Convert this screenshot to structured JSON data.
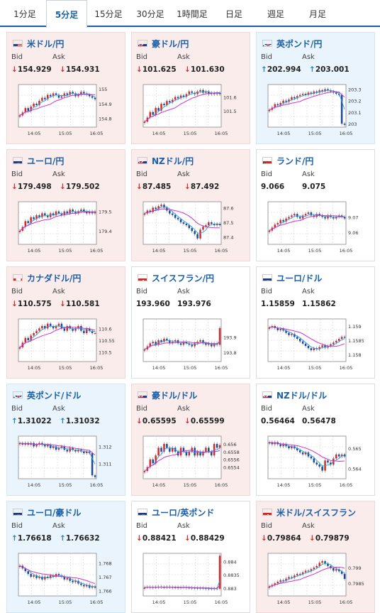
{
  "tabs": [
    {
      "label": "1分足",
      "active": false
    },
    {
      "label": "5分足",
      "active": true
    },
    {
      "label": "15分足",
      "active": false
    },
    {
      "label": "30分足",
      "active": false
    },
    {
      "label": "1時間足",
      "active": false
    },
    {
      "label": "日足",
      "active": false
    },
    {
      "label": "週足",
      "active": false
    },
    {
      "label": "月足",
      "active": false
    }
  ],
  "bid_label": "Bid",
  "ask_label": "Ask",
  "colors": {
    "up": "#d42a2a",
    "down": "#1a4aa0",
    "down_arrow": "#d42a2a",
    "up_arrow": "#2a7ec0",
    "ma": "#cc33cc",
    "ma2": "#2aa0d8"
  },
  "cards": [
    {
      "name": "米ドル/円",
      "flag": "us-flag",
      "bg": "pink",
      "dir": "down",
      "bid": "154.929",
      "ask": "154.931",
      "x_ticks": [
        "14:05",
        "15:05",
        "16:05"
      ],
      "y_ticks": [
        "155",
        "154.9",
        "154.8"
      ],
      "ylim": [
        154.74,
        155.03
      ],
      "closes": [
        154.82,
        154.84,
        154.87,
        154.85,
        154.88,
        154.9,
        154.89,
        154.92,
        154.94,
        154.93,
        154.96,
        154.95,
        154.97,
        154.96,
        154.94,
        154.95,
        154.97,
        154.96,
        154.98,
        154.97,
        154.95,
        154.96,
        154.98,
        154.97,
        154.96,
        154.95,
        154.94,
        154.93
      ]
    },
    {
      "name": "豪ドル/円",
      "flag": "au-flag",
      "bg": "pink",
      "dir": "down",
      "bid": "101.625",
      "ask": "101.630",
      "x_ticks": [
        "14:05",
        "15:05",
        "16:05"
      ],
      "y_ticks": [
        "101.6",
        "101.5"
      ],
      "ylim": [
        101.38,
        101.69
      ],
      "closes": [
        101.42,
        101.45,
        101.49,
        101.47,
        101.52,
        101.5,
        101.55,
        101.54,
        101.57,
        101.56,
        101.58,
        101.6,
        101.59,
        101.61,
        101.6,
        101.62,
        101.64,
        101.63,
        101.62,
        101.64,
        101.65,
        101.63,
        101.64,
        101.62,
        101.63,
        101.62,
        101.63,
        101.62
      ]
    },
    {
      "name": "英ポンド/円",
      "flag": "uk-flag",
      "bg": "blue",
      "dir": "up",
      "bid": "202.994",
      "ask": "203.001",
      "x_ticks": [
        "14:05",
        "15:05",
        "16:05"
      ],
      "y_ticks": [
        "203.3",
        "203.2",
        "203.1",
        "203"
      ],
      "ylim": [
        202.97,
        203.34
      ],
      "closes": [
        203.12,
        203.14,
        203.17,
        203.16,
        203.18,
        203.2,
        203.19,
        203.21,
        203.23,
        203.22,
        203.24,
        203.25,
        203.26,
        203.25,
        203.27,
        203.26,
        203.28,
        203.27,
        203.29,
        203.28,
        203.3,
        203.29,
        203.28,
        203.27,
        203.26,
        203.25,
        203.0,
        202.99
      ]
    },
    {
      "name": "ユーロ/円",
      "flag": "eu-flag",
      "bg": "pink",
      "dir": "down",
      "bid": "179.498",
      "ask": "179.502",
      "x_ticks": [
        "14:05",
        "15:05",
        "16:05"
      ],
      "y_ticks": [
        "179.5",
        "179.4"
      ],
      "ylim": [
        179.33,
        179.55
      ],
      "closes": [
        179.4,
        179.42,
        179.45,
        179.44,
        179.47,
        179.46,
        179.48,
        179.47,
        179.49,
        179.48,
        179.47,
        179.49,
        179.48,
        179.5,
        179.49,
        179.48,
        179.5,
        179.49,
        179.51,
        179.5,
        179.49,
        179.5,
        179.51,
        179.5,
        179.49,
        179.5,
        179.49,
        179.5
      ]
    },
    {
      "name": "NZドル/円",
      "flag": "nz-flag",
      "bg": "pink",
      "dir": "down",
      "bid": "87.485",
      "ask": "87.492",
      "x_ticks": [
        "14:05",
        "15:05",
        "16:05"
      ],
      "y_ticks": [
        "87.6",
        "87.5",
        "87.4"
      ],
      "ylim": [
        87.35,
        87.64
      ],
      "closes": [
        87.56,
        87.58,
        87.57,
        87.6,
        87.59,
        87.61,
        87.62,
        87.6,
        87.58,
        87.56,
        87.55,
        87.53,
        87.52,
        87.5,
        87.49,
        87.48,
        87.46,
        87.44,
        87.42,
        87.39,
        87.45,
        87.47,
        87.48,
        87.5,
        87.49,
        87.48,
        87.49,
        87.48
      ]
    },
    {
      "name": "ランド/円",
      "flag": "za-flag",
      "bg": "white",
      "dir": "none",
      "bid": "9.066",
      "ask": "9.075",
      "x_ticks": [
        "14:05",
        "15:05",
        "16:05"
      ],
      "y_ticks": [
        "9.07",
        "9.06"
      ],
      "ylim": [
        9.052,
        9.08
      ],
      "closes": [
        9.061,
        9.063,
        9.065,
        9.066,
        9.068,
        9.067,
        9.069,
        9.07,
        9.071,
        9.072,
        9.07,
        9.069,
        9.071,
        9.072,
        9.073,
        9.071,
        9.07,
        9.072,
        9.071,
        9.07,
        9.069,
        9.071,
        9.07,
        9.069,
        9.07,
        9.071,
        9.07,
        9.069
      ]
    },
    {
      "name": "カナダドル/円",
      "flag": "ca-flag",
      "bg": "pink",
      "dir": "down",
      "bid": "110.575",
      "ask": "110.581",
      "x_ticks": [
        "14:05",
        "15:05",
        "16:05"
      ],
      "y_ticks": [
        "110.6",
        "110.55",
        "110.5"
      ],
      "ylim": [
        110.46,
        110.64
      ],
      "closes": [
        110.52,
        110.54,
        110.56,
        110.55,
        110.57,
        110.58,
        110.59,
        110.6,
        110.61,
        110.6,
        110.62,
        110.61,
        110.6,
        110.61,
        110.62,
        110.6,
        110.59,
        110.61,
        110.6,
        110.59,
        110.6,
        110.61,
        110.59,
        110.58,
        110.6,
        110.59,
        110.58,
        110.58
      ]
    },
    {
      "name": "スイスフラン/円",
      "flag": "ch-flag",
      "bg": "white",
      "dir": "none",
      "bid": "193.960",
      "ask": "193.976",
      "x_ticks": [
        "14:05",
        "15:05",
        "16:05"
      ],
      "y_ticks": [
        "193.9",
        "193.8"
      ],
      "ylim": [
        193.74,
        194.02
      ],
      "closes": [
        193.82,
        193.84,
        193.86,
        193.87,
        193.85,
        193.88,
        193.87,
        193.89,
        193.88,
        193.86,
        193.87,
        193.88,
        193.86,
        193.85,
        193.87,
        193.86,
        193.85,
        193.84,
        193.86,
        193.87,
        193.88,
        193.86,
        193.85,
        193.86,
        193.84,
        193.86,
        193.85,
        193.96
      ]
    },
    {
      "name": "ユーロ/ドル",
      "flag": "eu-flag",
      "bg": "white",
      "dir": "none",
      "bid": "1.15859",
      "ask": "1.15862",
      "x_ticks": [
        "14:05",
        "15:05",
        "16:05"
      ],
      "y_ticks": [
        "1.159",
        "1.1585",
        "1.158"
      ],
      "ylim": [
        1.15775,
        1.15925
      ],
      "closes": [
        1.15895,
        1.159,
        1.15893,
        1.15885,
        1.1589,
        1.15884,
        1.15876,
        1.15868,
        1.15872,
        1.15862,
        1.15855,
        1.15846,
        1.15838,
        1.1583,
        1.15822,
        1.15815,
        1.15822,
        1.15818,
        1.15826,
        1.15832,
        1.15824,
        1.1583,
        1.15836,
        1.15842,
        1.15848,
        1.15855,
        1.15862,
        1.15859
      ]
    },
    {
      "name": "英ポンド/ドル",
      "flag": "uk-flag",
      "bg": "blue",
      "dir": "up",
      "bid": "1.31022",
      "ask": "1.31032",
      "x_ticks": [
        "14:05",
        "15:05",
        "16:05"
      ],
      "y_ticks": [
        "1.312",
        "1.311"
      ],
      "ylim": [
        1.3101,
        1.3126
      ],
      "closes": [
        1.3122,
        1.3121,
        1.3122,
        1.3121,
        1.3122,
        1.312,
        1.3121,
        1.3122,
        1.3121,
        1.312,
        1.3121,
        1.3119,
        1.312,
        1.3118,
        1.3119,
        1.312,
        1.3118,
        1.3117,
        1.3119,
        1.3118,
        1.3117,
        1.3118,
        1.3117,
        1.3116,
        1.3117,
        1.3116,
        1.3103,
        1.3102
      ]
    },
    {
      "name": "豪ドル/ドル",
      "flag": "au-flag",
      "bg": "pink",
      "dir": "down",
      "bid": "0.65595",
      "ask": "0.65599",
      "x_ticks": [
        "14:05",
        "15:05",
        "16:05"
      ],
      "y_ticks": [
        "0.656",
        "0.6558",
        "0.6556",
        "0.6554"
      ],
      "ylim": [
        0.6551,
        0.6562
      ],
      "closes": [
        0.6553,
        0.6554,
        0.6556,
        0.6555,
        0.6557,
        0.6559,
        0.6558,
        0.656,
        0.6559,
        0.6558,
        0.6559,
        0.6558,
        0.6557,
        0.6559,
        0.6558,
        0.6557,
        0.6558,
        0.6559,
        0.6557,
        0.6558,
        0.6557,
        0.6558,
        0.6559,
        0.6558,
        0.6557,
        0.656,
        0.6559,
        0.65597
      ]
    },
    {
      "name": "NZドル/ドル",
      "flag": "nz-flag",
      "bg": "white",
      "dir": "none",
      "bid": "0.56464",
      "ask": "0.56478",
      "x_ticks": [
        "14:05",
        "15:05",
        "16:05"
      ],
      "y_ticks": [
        "0.565",
        "0.564"
      ],
      "ylim": [
        0.5635,
        0.5656
      ],
      "closes": [
        0.5653,
        0.5652,
        0.5653,
        0.5652,
        0.5651,
        0.5652,
        0.5651,
        0.565,
        0.5651,
        0.565,
        0.5649,
        0.5648,
        0.5647,
        0.5648,
        0.5646,
        0.5645,
        0.5643,
        0.5642,
        0.5641,
        0.5639,
        0.5644,
        0.5643,
        0.5642,
        0.5645,
        0.5647,
        0.5646,
        0.5647,
        0.5646
      ]
    },
    {
      "name": "ユーロ/豪ドル",
      "flag": "eu-flag",
      "bg": "blue",
      "dir": "up",
      "bid": "1.76618",
      "ask": "1.76632",
      "x_ticks": [
        "14:05",
        "15:05",
        "16:05"
      ],
      "y_ticks": [
        "1.768",
        "1.767",
        "1.766"
      ],
      "ylim": [
        1.7656,
        1.7687
      ],
      "closes": [
        1.7678,
        1.7676,
        1.7674,
        1.7672,
        1.767,
        1.7671,
        1.7669,
        1.767,
        1.7668,
        1.767,
        1.7669,
        1.7671,
        1.767,
        1.7672,
        1.7671,
        1.767,
        1.7668,
        1.7669,
        1.7667,
        1.7666,
        1.7667,
        1.7665,
        1.7664,
        1.7663,
        1.7664,
        1.7662,
        1.7663,
        1.7662
      ]
    },
    {
      "name": "ユーロ/英ポンド",
      "flag": "eu-flag",
      "bg": "white",
      "dir": "down",
      "bid": "0.88421",
      "ask": "0.88429",
      "x_ticks": [
        "14:05",
        "15:05",
        "16:05"
      ],
      "y_ticks": [
        "0.884",
        "0.8835",
        "0.883"
      ],
      "ylim": [
        0.8827,
        0.8843
      ],
      "closes": [
        0.88302,
        0.88304,
        0.88301,
        0.88303,
        0.88302,
        0.88305,
        0.88303,
        0.88302,
        0.88304,
        0.88303,
        0.88301,
        0.88302,
        0.883,
        0.88302,
        0.88303,
        0.883,
        0.88301,
        0.88299,
        0.883,
        0.88298,
        0.883,
        0.88299,
        0.88297,
        0.88298,
        0.88296,
        0.88298,
        0.88297,
        0.88421
      ]
    },
    {
      "name": "米ドル/スイスフラン",
      "flag": "ch-flag",
      "bg": "pink",
      "dir": "down",
      "bid": "0.79864",
      "ask": "0.79879",
      "x_ticks": [
        "14:05",
        "15:05",
        "16:05"
      ],
      "y_ticks": [
        "0.799",
        "0.7985"
      ],
      "ylim": [
        0.7981,
        0.79945
      ],
      "closes": [
        0.7984,
        0.79845,
        0.7985,
        0.79855,
        0.7986,
        0.79858,
        0.79865,
        0.7987,
        0.79868,
        0.79875,
        0.7988,
        0.79878,
        0.79885,
        0.7989,
        0.79888,
        0.79895,
        0.799,
        0.79905,
        0.79915,
        0.7992,
        0.79912,
        0.79905,
        0.79898,
        0.7989,
        0.79895,
        0.79888,
        0.7988,
        0.79864
      ]
    }
  ]
}
